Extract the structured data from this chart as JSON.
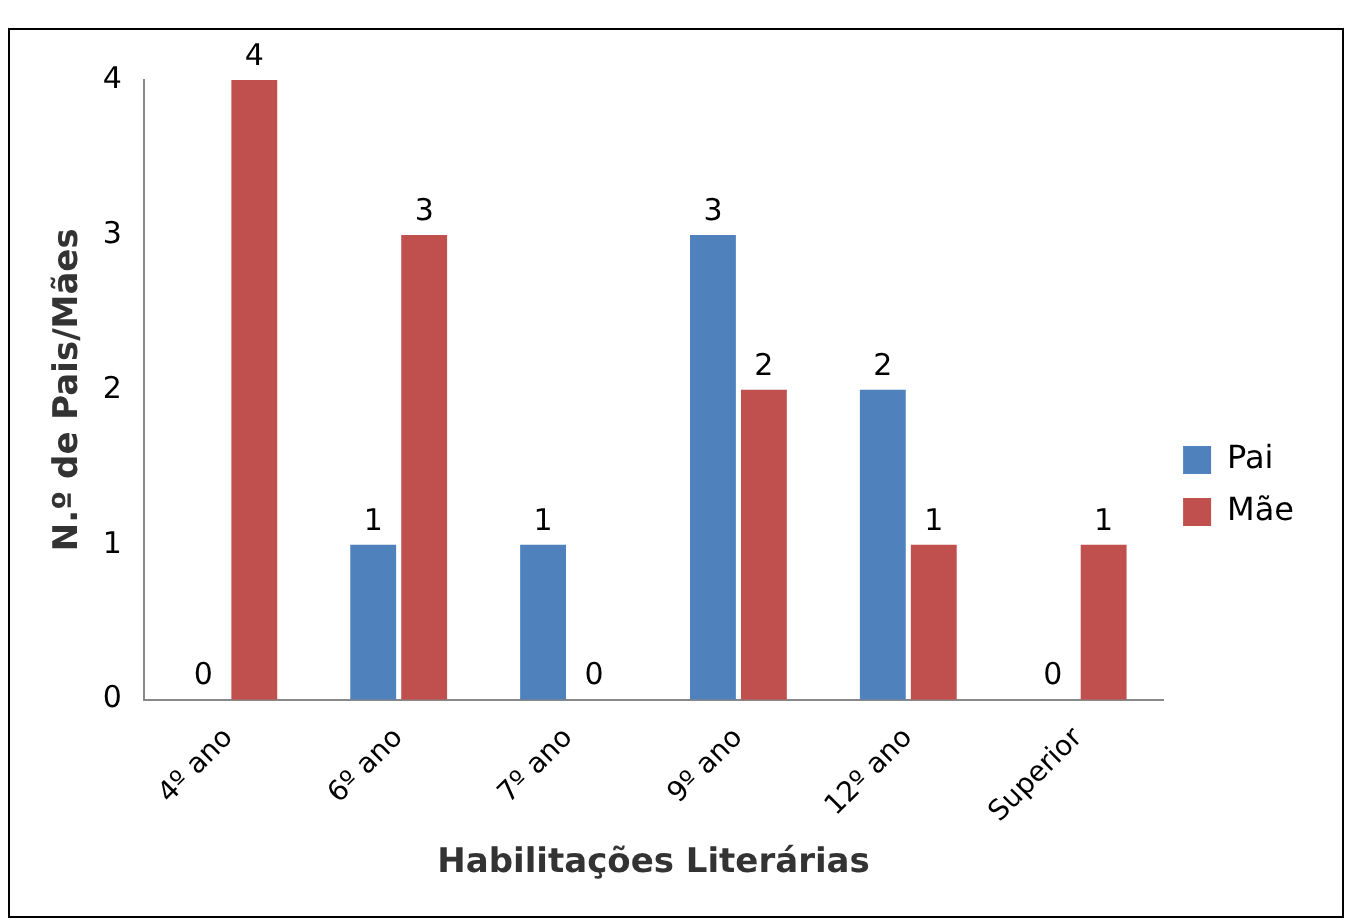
{
  "chart_data": {
    "type": "bar",
    "xlabel": "Habilitações Literárias",
    "ylabel": "N.º de Pais/Mães",
    "categories": [
      "4º ano",
      "6º ano",
      "7º ano",
      "9º ano",
      "12º ano",
      "Superior"
    ],
    "series": [
      {
        "name": "Pai",
        "color": "#4f81bd",
        "values": [
          0,
          1,
          1,
          3,
          2,
          0
        ]
      },
      {
        "name": "Mãe",
        "color": "#c0504d",
        "values": [
          4,
          3,
          0,
          2,
          1,
          1
        ]
      }
    ],
    "ylim": [
      0,
      4
    ],
    "yticks": [
      0,
      1,
      2,
      3,
      4
    ],
    "grid": false,
    "legend": "right",
    "data_labels": true
  }
}
